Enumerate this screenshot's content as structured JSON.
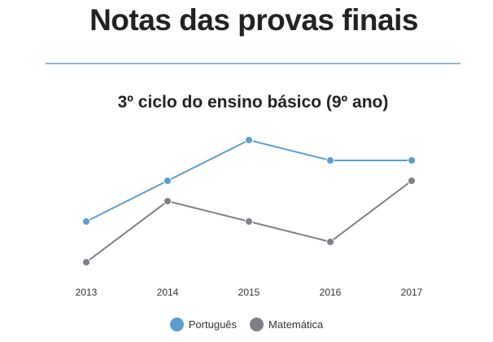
{
  "page": {
    "title": "Notas das provas finais",
    "subtitle": "3º ciclo do ensino básico (9º ano)"
  },
  "chart_data": {
    "type": "line",
    "title": "3º ciclo do ensino básico (9º ano)",
    "xlabel": "",
    "ylabel": "",
    "grid": false,
    "legend_position": "bottom",
    "x": [
      "2013",
      "2014",
      "2015",
      "2016",
      "2017"
    ],
    "series": [
      {
        "name": "Português",
        "color": "#5a9fd0",
        "values": [
          3.0,
          5.0,
          7.0,
          6.0,
          6.0
        ]
      },
      {
        "name": "Matemática",
        "color": "#7d8088",
        "values": [
          1.0,
          4.0,
          3.0,
          2.0,
          5.0
        ]
      }
    ],
    "ylim": [
      0.0,
      8.0
    ]
  }
}
